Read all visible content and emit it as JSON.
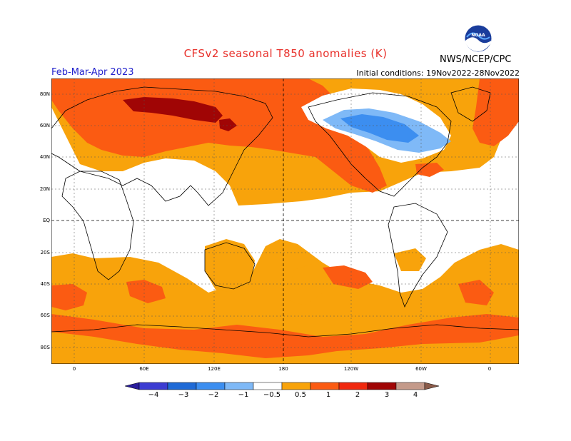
{
  "header": {
    "title": "CFSv2 seasonal T850 anomalies (K)",
    "period": "Feb-Mar-Apr 2023",
    "initial_conditions": "Initial conditions: 19Nov2022-28Nov2022",
    "agency": "NWS/NCEP/CPC",
    "logo_text": "NOAA"
  },
  "axes": {
    "lat_labels": [
      "80N",
      "60N",
      "40N",
      "20N",
      "EQ",
      "20S",
      "40S",
      "60S",
      "80S"
    ],
    "lon_labels": [
      "0",
      "60E",
      "120E",
      "180",
      "120W",
      "60W",
      "0"
    ]
  },
  "colorbar": {
    "labels": [
      "−4",
      "−3",
      "−2",
      "−1",
      "−0.5",
      "0.5",
      "1",
      "2",
      "3",
      "4"
    ],
    "colors": [
      "#2a1e9c",
      "#3c3cd2",
      "#1f6ad6",
      "#3c8ef0",
      "#7fb9f7",
      "#ffffff",
      "#f8a30b",
      "#fb5b12",
      "#f0280e",
      "#a00505",
      "#c49a8a",
      "#8b5c4a"
    ]
  },
  "colors": {
    "weak_warm": "#f8a30b",
    "warm": "#fb5b12",
    "strong_warm": "#a00505",
    "weak_cold": "#7fb9f7",
    "cold": "#3c8ef0"
  }
}
